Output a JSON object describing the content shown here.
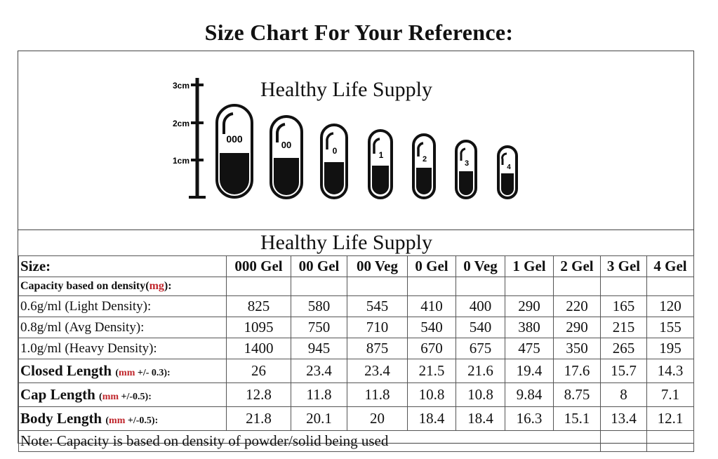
{
  "title": "Size Chart For Your Reference:",
  "brand_top": "Healthy Life Supply",
  "brand_mid": "Healthy Life Supply",
  "scale": {
    "labels": [
      "3cm",
      "2cm",
      "1cm"
    ]
  },
  "capsules": [
    {
      "label": "000"
    },
    {
      "label": "00"
    },
    {
      "label": "0"
    },
    {
      "label": "1"
    },
    {
      "label": "2"
    },
    {
      "label": "3"
    },
    {
      "label": "4"
    }
  ],
  "table": {
    "header_label": "Size:",
    "columns": [
      "000 Gel",
      "00 Gel",
      "00 Veg",
      "0 Gel",
      "0 Veg",
      "1 Gel",
      "2 Gel",
      "3 Gel",
      "4 Gel"
    ],
    "capacity_label_main": "Capacity based on density(",
    "capacity_label_unit": "mg",
    "capacity_label_end": "):",
    "rows": [
      {
        "label": "0.6g/ml (Light Density):",
        "values": [
          "825",
          "580",
          "545",
          "410",
          "400",
          "290",
          "220",
          "165",
          "120"
        ]
      },
      {
        "label": "0.8g/ml (Avg Density):",
        "values": [
          "1095",
          "750",
          "710",
          "540",
          "540",
          "380",
          "290",
          "215",
          "155"
        ]
      },
      {
        "label": "1.0g/ml (Heavy Density):",
        "values": [
          "1400",
          "945",
          "875",
          "670",
          "675",
          "475",
          "350",
          "265",
          "195"
        ]
      }
    ],
    "length_rows": [
      {
        "label": "Closed Length",
        "unit_red": "mm",
        "unit_rest": " +/- 0.3):",
        "values": [
          "26",
          "23.4",
          "23.4",
          "21.5",
          "21.6",
          "19.4",
          "17.6",
          "15.7",
          "14.3"
        ]
      },
      {
        "label": "Cap Length",
        "unit_red": "mm",
        "unit_rest": " +/-0.5):",
        "values": [
          "12.8",
          "11.8",
          "11.8",
          "10.8",
          "10.8",
          "9.84",
          "8.75",
          "8",
          "7.1"
        ]
      },
      {
        "label": "Body Length",
        "unit_red": "mm",
        "unit_rest": " +/-0.5):",
        "values": [
          "21.8",
          "20.1",
          "20",
          "18.4",
          "18.4",
          "16.3",
          "15.1",
          "13.4",
          "12.1"
        ]
      }
    ],
    "note": "Note: Capacity is based on density of powder/solid being used"
  }
}
